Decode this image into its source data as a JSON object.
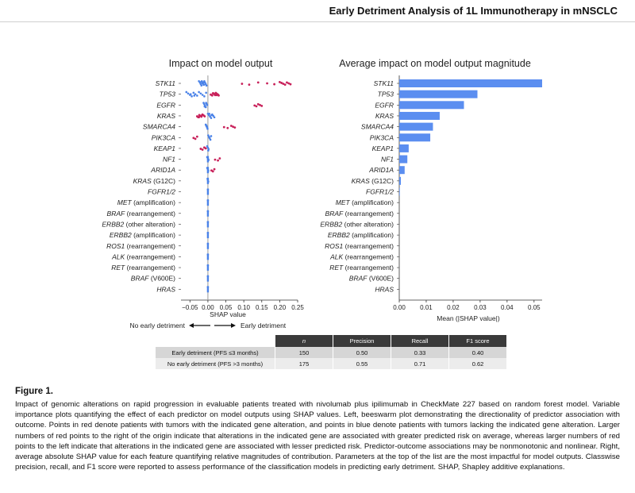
{
  "header": {
    "title": "Early Detriment Analysis of 1L Immunotherapy in mNSCLC"
  },
  "features": [
    {
      "label": "STK11",
      "italic": true
    },
    {
      "label": "TP53",
      "italic": true
    },
    {
      "label": "EGFR",
      "italic": true
    },
    {
      "label": "KRAS",
      "italic": true
    },
    {
      "label": "SMARCA4",
      "italic": true
    },
    {
      "label": "PIK3CA",
      "italic": true
    },
    {
      "label": "KEAP1",
      "italic": true
    },
    {
      "label": "NF1",
      "italic": true
    },
    {
      "label": "ARID1A",
      "italic": true
    },
    {
      "gene": "KRAS",
      "suffix": " (G12C)"
    },
    {
      "label": "FGFR1/2",
      "italic": true
    },
    {
      "gene": "MET",
      "suffix": " (amplification)"
    },
    {
      "gene": "BRAF",
      "suffix": " (rearrangement)"
    },
    {
      "gene": "ERBB2",
      "suffix": " (other alteration)"
    },
    {
      "gene": "ERBB2",
      "suffix": " (amplification)"
    },
    {
      "gene": "ROS1",
      "suffix": " (rearrangement)"
    },
    {
      "gene": "ALK",
      "suffix": " (rearrangement)"
    },
    {
      "gene": "RET",
      "suffix": " (rearrangement)"
    },
    {
      "gene": "BRAF",
      "suffix": " (V600E)"
    },
    {
      "label": "HRAS",
      "italic": true
    }
  ],
  "chart_data": [
    {
      "type": "scatter",
      "title": "Impact on model output",
      "xlabel": "SHAP value",
      "xlim": [
        -0.075,
        0.25
      ],
      "xticks": [
        -0.05,
        0.0,
        0.05,
        0.1,
        0.15,
        0.2,
        0.25
      ],
      "xtick_labels": [
        "−0.05",
        "0.00",
        "0.05",
        "0.10",
        "0.15",
        "0.20",
        "0.25"
      ],
      "direction_labels": {
        "left": "No early detriment",
        "right": "Early detriment"
      },
      "colors": {
        "red": "#c8215a",
        "blue": "#4a82e8"
      },
      "series": [
        {
          "feature": "STK11",
          "blue": [
            -0.025,
            -0.022,
            -0.02,
            -0.018,
            -0.016,
            -0.014,
            -0.012,
            -0.01,
            -0.008,
            -0.006,
            -0.004,
            -0.019,
            -0.015,
            -0.011,
            -0.017,
            -0.013
          ],
          "red": [
            0.095,
            0.115,
            0.14,
            0.165,
            0.185,
            0.2,
            0.205,
            0.21,
            0.215,
            0.22,
            0.225,
            0.23
          ]
        },
        {
          "feature": "TP53",
          "blue": [
            -0.06,
            -0.055,
            -0.05,
            -0.045,
            -0.04,
            -0.035,
            -0.03,
            -0.025,
            -0.02,
            -0.015,
            -0.01,
            -0.005,
            -0.048,
            -0.038
          ],
          "red": [
            0.008,
            0.012,
            0.015,
            0.018,
            0.02,
            0.022,
            0.025,
            0.028,
            0.03,
            0.014,
            0.019,
            0.024
          ]
        },
        {
          "feature": "EGFR",
          "blue": [
            -0.012,
            -0.01,
            -0.008,
            -0.006,
            -0.004,
            -0.002,
            -0.009,
            -0.005
          ],
          "red": [
            0.13,
            0.135,
            0.14,
            0.145,
            0.15
          ]
        },
        {
          "feature": "KRAS",
          "blue": [
            0.0,
            0.003,
            0.006,
            0.009,
            0.012,
            0.015,
            0.018,
            0.004,
            0.01
          ],
          "red": [
            -0.03,
            -0.027,
            -0.024,
            -0.021,
            -0.018,
            -0.015,
            -0.012,
            -0.009,
            -0.025,
            -0.016
          ]
        },
        {
          "feature": "SMARCA4",
          "blue": [
            -0.006,
            -0.004,
            -0.002,
            -0.001,
            -0.005,
            -0.003
          ],
          "red": [
            0.045,
            0.055,
            0.065,
            0.07,
            0.075
          ]
        },
        {
          "feature": "PIK3CA",
          "blue": [
            0.001,
            0.003,
            0.005,
            0.007,
            0.009,
            0.004
          ],
          "red": [
            -0.04,
            -0.035,
            -0.03
          ]
        },
        {
          "feature": "KEAP1",
          "blue": [
            -0.002,
            0.0,
            0.002,
            0.001
          ],
          "red": [
            -0.02,
            -0.015,
            -0.01,
            -0.006
          ]
        },
        {
          "feature": "NF1",
          "blue": [
            -0.002,
            0.0,
            0.002
          ],
          "red": [
            0.02,
            0.028,
            0.033
          ]
        },
        {
          "feature": "ARID1A",
          "blue": [
            -0.002,
            0.0,
            0.001
          ],
          "red": [
            0.01,
            0.014,
            0.018
          ]
        },
        {
          "feature": "KRAS (G12C)",
          "blue": [
            -0.001,
            0.0,
            0.001
          ],
          "red": []
        },
        {
          "feature": "FGFR1/2",
          "blue": [
            0.0
          ],
          "red": []
        },
        {
          "feature": "MET (amplification)",
          "blue": [
            0.0
          ],
          "red": []
        },
        {
          "feature": "BRAF (rearrangement)",
          "blue": [
            0.0
          ],
          "red": []
        },
        {
          "feature": "ERBB2 (other alteration)",
          "blue": [
            0.0
          ],
          "red": []
        },
        {
          "feature": "ERBB2 (amplification)",
          "blue": [
            0.0
          ],
          "red": []
        },
        {
          "feature": "ROS1 (rearrangement)",
          "blue": [
            0.0
          ],
          "red": []
        },
        {
          "feature": "ALK (rearrangement)",
          "blue": [
            0.0
          ],
          "red": []
        },
        {
          "feature": "RET (rearrangement)",
          "blue": [
            0.0
          ],
          "red": []
        },
        {
          "feature": "BRAF (V600E)",
          "blue": [
            0.0
          ],
          "red": []
        },
        {
          "feature": "HRAS",
          "blue": [
            0.0
          ],
          "red": []
        }
      ]
    },
    {
      "type": "bar",
      "title": "Average impact on model output magnitude",
      "xlabel": "Mean (|SHAP value|)",
      "xlim": [
        0,
        0.053
      ],
      "xticks": [
        0.0,
        0.01,
        0.02,
        0.03,
        0.04,
        0.05
      ],
      "xtick_labels": [
        "0.00",
        "0.01",
        "0.02",
        "0.03",
        "0.04",
        "0.05"
      ],
      "color": "#5b8ef0",
      "values": [
        0.053,
        0.029,
        0.024,
        0.015,
        0.0125,
        0.0115,
        0.0035,
        0.003,
        0.002,
        0.0006,
        0.0002,
        0,
        0,
        0,
        0,
        0,
        0,
        0,
        0,
        0
      ]
    }
  ],
  "table": {
    "headers": [
      "",
      "n",
      "Precision",
      "Recall",
      "F1 score"
    ],
    "rows": [
      {
        "label": "Early detriment (PFS ≤3 months)",
        "n": "150",
        "precision": "0.50",
        "recall": "0.33",
        "f1": "0.40"
      },
      {
        "label": "No early detriment (PFS >3 months)",
        "n": "175",
        "precision": "0.55",
        "recall": "0.71",
        "f1": "0.62"
      }
    ]
  },
  "caption": {
    "title": "Figure 1.",
    "body": "Impact of genomic alterations on rapid progression in evaluable patients treated with nivolumab plus ipilimumab in CheckMate 227 based on random forest model. Variable importance plots quantifying the effect of each predictor on model outputs using SHAP values. Left, beeswarm plot demonstrating the directionality of predictor association with outcome. Points in red denote patients with tumors with the indicated gene alteration, and points in blue denote patients with tumors lacking the indicated gene alteration. Larger numbers of red points to the right of the origin indicate that alterations in the indicated gene are associated with greater predicted risk on average, whereas larger numbers of red points to the left indicate that alterations in the indicated gene are associated with lesser predicted risk. Predictor-outcome associations may be nonmonotonic and nonlinear. Right, average absolute SHAP value for each feature quantifying relative magnitudes of contribution. Parameters at the top of the list are the most impactful for model outputs. Classwise precision, recall, and F1 score were reported to assess performance of the classification models in predicting early detriment. SHAP, Shapley additive explanations."
  }
}
